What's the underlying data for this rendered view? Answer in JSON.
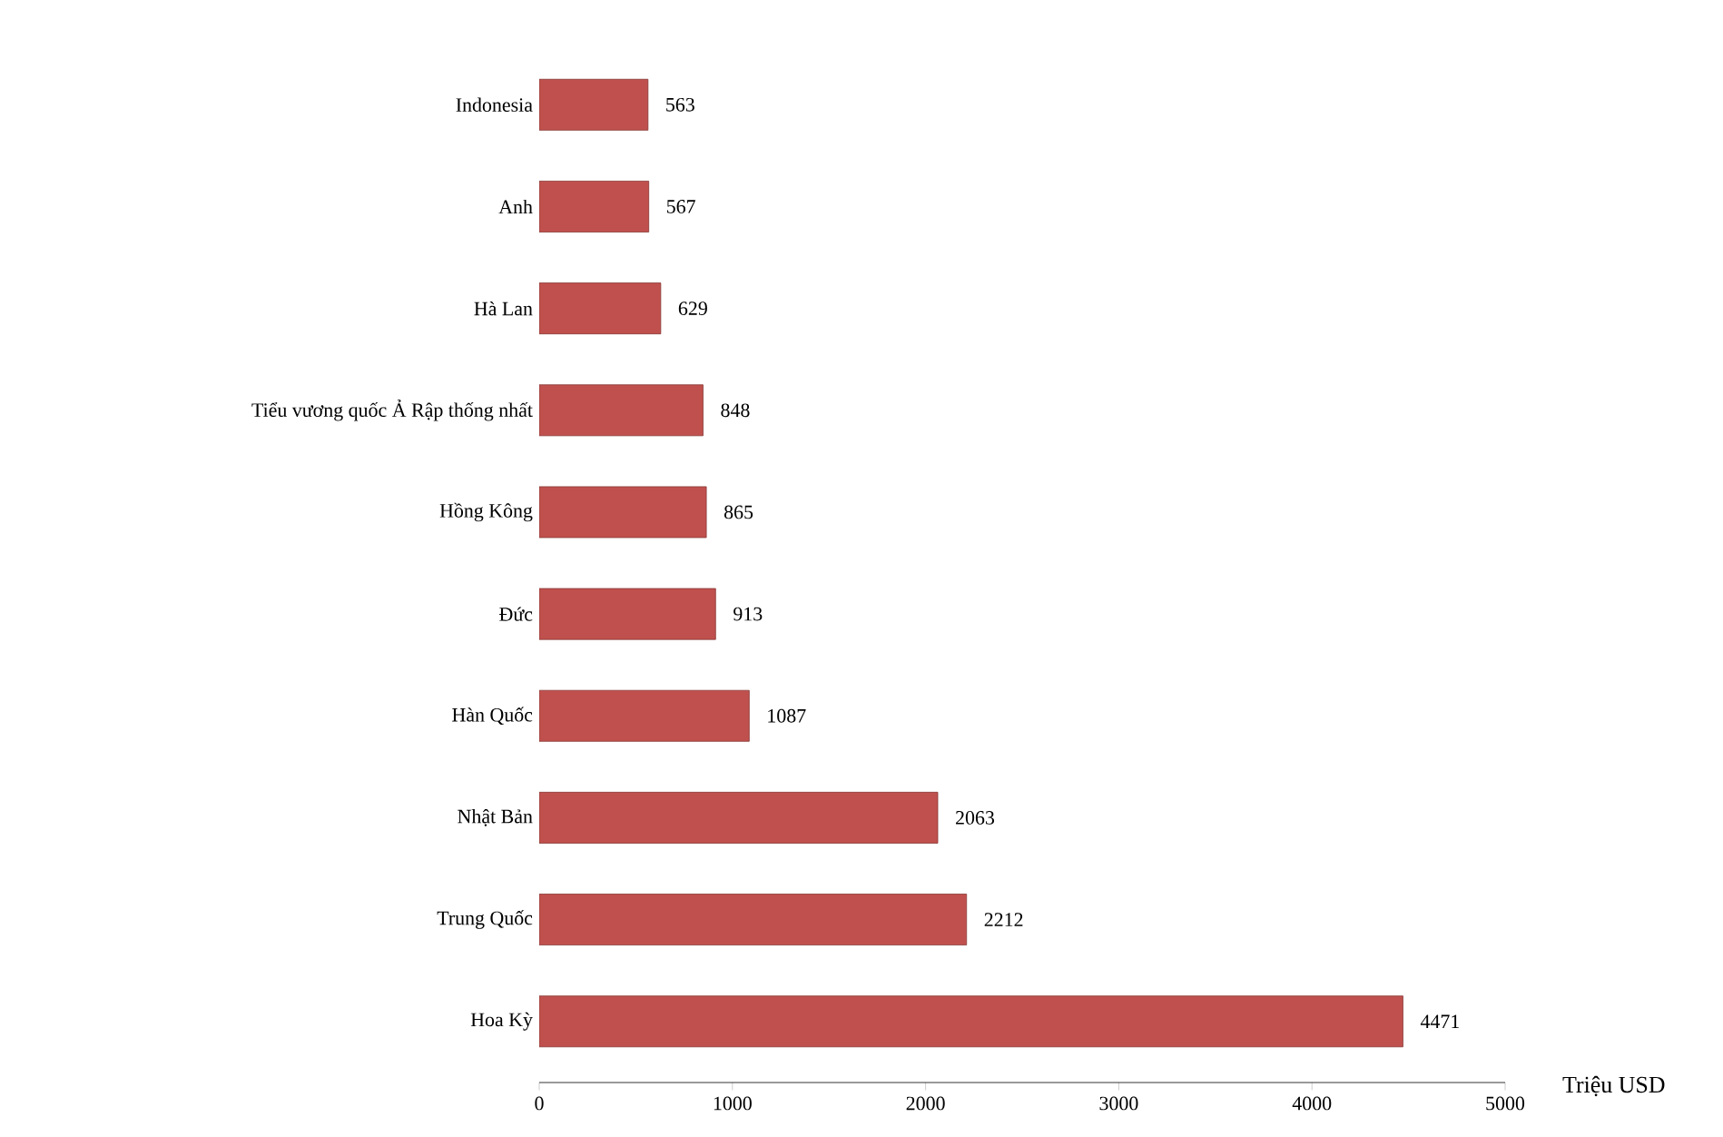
{
  "chart_data": {
    "type": "bar",
    "orientation": "horizontal",
    "categories": [
      "Indonesia",
      "Anh",
      "Hà Lan",
      "Tiểu vương quốc Ả Rập thống nhất",
      "Hồng Kông",
      "Đức",
      "Hàn Quốc",
      "Nhật Bản",
      "Trung Quốc",
      "Hoa Kỳ"
    ],
    "values": [
      563,
      567,
      629,
      848,
      865,
      913,
      1087,
      2063,
      2212,
      4471
    ],
    "color": "#c0504d",
    "xlim": [
      0,
      5000
    ],
    "xticks": [
      0,
      1000,
      2000,
      3000,
      4000,
      5000
    ],
    "xlabel": "Triệu USD",
    "data_labels": true,
    "grid": false
  }
}
